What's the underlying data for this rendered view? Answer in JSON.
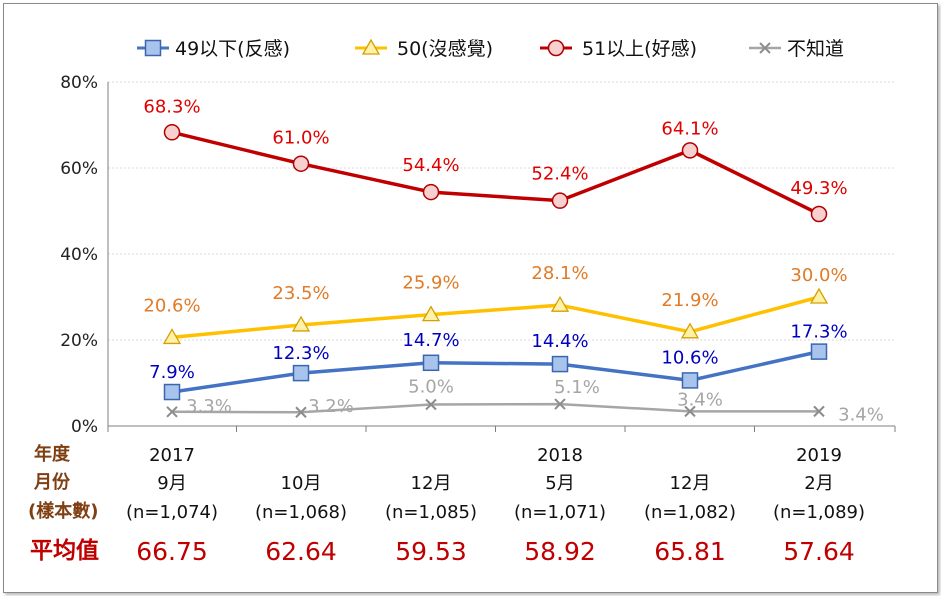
{
  "chart_data": {
    "type": "line",
    "ylim": [
      0,
      80
    ],
    "yticks": [
      "0%",
      "20%",
      "40%",
      "60%",
      "80%"
    ],
    "grid": true,
    "legend_position": "top",
    "categories": [
      "9月",
      "10月",
      "12月",
      "5月",
      "12月",
      "2月"
    ],
    "years": [
      "2017",
      "",
      "",
      "2018",
      "",
      "2019"
    ],
    "samples": [
      "(n=1,074)",
      "(n=1,068)",
      "(n=1,085)",
      "(n=1,071)",
      "(n=1,082)",
      "(n=1,089)"
    ],
    "averages": [
      "66.75",
      "62.64",
      "59.53",
      "58.92",
      "65.81",
      "57.64"
    ],
    "row_headers": {
      "year": "年度",
      "month": "月份",
      "sample": "(樣本數)",
      "average": "平均值"
    },
    "series": [
      {
        "name": "49以下(反感)",
        "color": "#4472c4",
        "label_color": "#0000c0",
        "marker": "square",
        "values": [
          7.9,
          12.3,
          14.7,
          14.4,
          10.6,
          17.3
        ],
        "labels": [
          "7.9%",
          "12.3%",
          "14.7%",
          "14.4%",
          "10.6%",
          "17.3%"
        ]
      },
      {
        "name": "50(沒感覺)",
        "color": "#ffc000",
        "label_color": "#e07b28",
        "marker": "triangle",
        "values": [
          20.6,
          23.5,
          25.9,
          28.1,
          21.9,
          30.0
        ],
        "labels": [
          "20.6%",
          "23.5%",
          "25.9%",
          "28.1%",
          "21.9%",
          "30.0%"
        ]
      },
      {
        "name": "51以上(好感)",
        "color": "#c00000",
        "label_color": "#e00000",
        "marker": "circle",
        "values": [
          68.3,
          61.0,
          54.4,
          52.4,
          64.1,
          49.3
        ],
        "labels": [
          "68.3%",
          "61.0%",
          "54.4%",
          "52.4%",
          "64.1%",
          "49.3%"
        ]
      },
      {
        "name": "不知道",
        "color": "#a6a6a6",
        "label_color": "#a6a6a6",
        "marker": "x",
        "values": [
          3.3,
          3.2,
          5.0,
          5.1,
          3.4,
          3.4
        ],
        "labels": [
          "3.3%",
          "3.2%",
          "5.0%",
          "5.1%",
          "3.4%",
          "3.4%"
        ]
      }
    ]
  }
}
